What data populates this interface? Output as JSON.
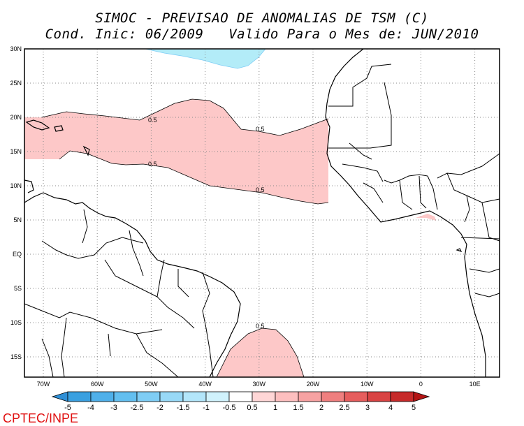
{
  "title_line1": "SIMOC - PREVISAO DE ANOMALIAS DE TSM (C)",
  "title_line2": "Cond. Inic: 06/2009   Valido Para o Mes de: JUN/2010",
  "credit": "CPTEC/INPE",
  "lat_labels": [
    "30N",
    "25N",
    "20N",
    "15N",
    "10N",
    "5N",
    "EQ",
    "5S",
    "10S",
    "15S"
  ],
  "lon_labels": [
    "70W",
    "60W",
    "50W",
    "40W",
    "30W",
    "20W",
    "10W",
    "0",
    "10E"
  ],
  "contour_labels": [
    "0.5",
    "0.5",
    "0.5",
    "0.5",
    "0.5"
  ],
  "colorbar": {
    "labels": [
      "-5",
      "-4",
      "-3",
      "-2.5",
      "-2",
      "-1.5",
      "-1",
      "-0.5",
      "0.5",
      "1",
      "1.5",
      "2",
      "2.5",
      "3",
      "4",
      "5"
    ],
    "colors": [
      "#2f8fd6",
      "#3aa0e0",
      "#4fb0ea",
      "#63bff0",
      "#7fcdf5",
      "#98d9f7",
      "#b3e6fa",
      "#d0f2fc",
      "#ffffff",
      "#ffd6d6",
      "#fdbfbf",
      "#f7a2a2",
      "#ef7f7f",
      "#e65d5d",
      "#d94343",
      "#c72a2a",
      "#b31414"
    ]
  },
  "map_colors": {
    "ocean": "#ffffff",
    "land": "#ffffff",
    "positive_anomaly": "#fdc8c8",
    "negative_anomaly": "#b3ecf8"
  }
}
